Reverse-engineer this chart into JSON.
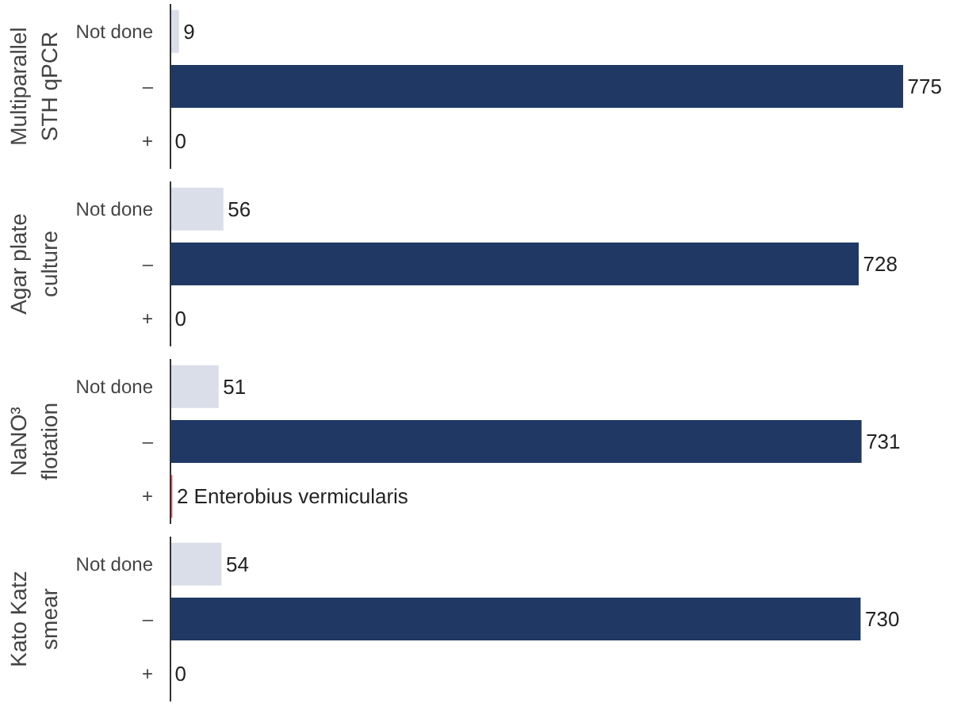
{
  "chart_data": [
    {
      "type": "bar",
      "orientation": "horizontal",
      "ylabel": "Multiparallel\nSTH qPCR",
      "categories": [
        "Not done",
        "–",
        "+"
      ],
      "values": [
        9,
        775,
        0
      ],
      "colors": [
        "#d9dee8",
        "#1f3864",
        "#f05a64"
      ],
      "value_labels": [
        "9",
        "775",
        "0"
      ],
      "tick_labels": "y"
    },
    {
      "type": "bar",
      "orientation": "horizontal",
      "ylabel": "Agar plate\nculture",
      "categories": [
        "Not done",
        "–",
        "+"
      ],
      "values": [
        56,
        728,
        0
      ],
      "colors": [
        "#d9dee8",
        "#1f3864",
        "#f05a64"
      ],
      "value_labels": [
        "56",
        "728",
        "0"
      ],
      "tick_labels": "y"
    },
    {
      "type": "bar",
      "orientation": "horizontal",
      "ylabel": "NaNO³\nflotation",
      "categories": [
        "Not done",
        "–",
        "+"
      ],
      "values": [
        51,
        731,
        2
      ],
      "colors": [
        "#d9dee8",
        "#1f3864",
        "#f05a64"
      ],
      "value_labels": [
        "51",
        "731",
        "2 Enterobius vermicularis"
      ],
      "tick_labels": "y"
    },
    {
      "type": "bar",
      "orientation": "horizontal",
      "ylabel": "Kato Katz\nsmear",
      "categories": [
        "Not done",
        "–",
        "+"
      ],
      "values": [
        54,
        730,
        0
      ],
      "colors": [
        "#d9dee8",
        "#1f3864",
        "#f05a64"
      ],
      "value_labels": [
        "54",
        "730",
        "0"
      ],
      "tick_labels": "y"
    }
  ]
}
